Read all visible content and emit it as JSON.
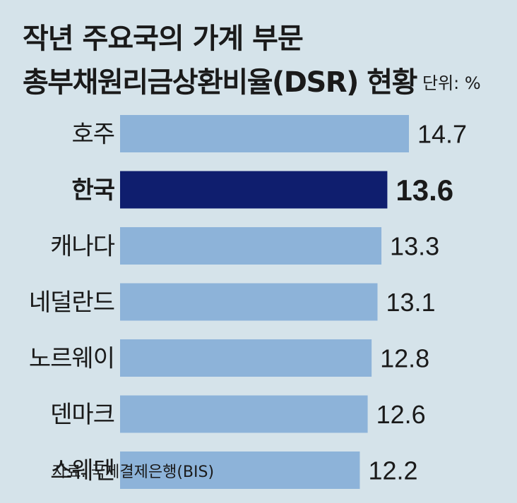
{
  "header": {
    "title_line1": "작년 주요국의 가계 부문",
    "title_line2": "총부채원리금상환비율(DSR) 현황",
    "unit": "단위: %"
  },
  "source": "자료: 국제결제은행(BIS)",
  "colors": {
    "background": "#d5e3ea",
    "bar": "#8db3d9",
    "highlight_bar": "#0f1e6e"
  },
  "chart_data": {
    "type": "bar",
    "orientation": "horizontal",
    "title": "작년 주요국의 가계 부문 총부채원리금상환비율(DSR) 현황",
    "unit": "%",
    "categories": [
      "호주",
      "한국",
      "캐나다",
      "네덜란드",
      "노르웨이",
      "덴마크",
      "스웨덴"
    ],
    "values": [
      14.7,
      13.6,
      13.3,
      13.1,
      12.8,
      12.6,
      12.2
    ],
    "value_labels": [
      "14.7",
      "13.6",
      "13.3",
      "13.1",
      "12.8",
      "12.6",
      "12.2"
    ],
    "highlight_category": "한국",
    "xlim": [
      0,
      14.7
    ],
    "grid": false,
    "legend": "none"
  }
}
